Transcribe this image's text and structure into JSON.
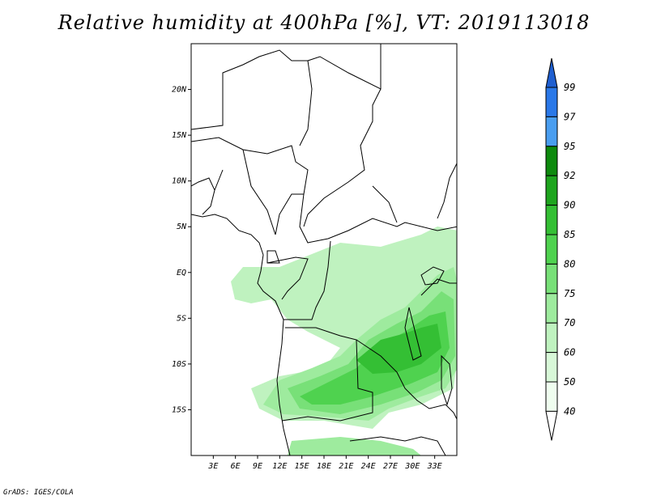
{
  "title": "Relative humidity at 400hPa [%], VT: 2019113018",
  "footer": "GrADS: IGES/COLA",
  "map": {
    "lon_range": [
      0,
      36
    ],
    "lat_range": [
      -20,
      25
    ],
    "lat_ticks": [
      "20N",
      "15N",
      "10N",
      "5N",
      "EQ",
      "5S",
      "10S",
      "15S"
    ],
    "lon_ticks": [
      "3E",
      "6E",
      "9E",
      "12E",
      "15E",
      "18E",
      "21E",
      "24E",
      "27E",
      "30E",
      "33E"
    ]
  },
  "colorbar": {
    "labels": [
      "99",
      "97",
      "95",
      "92",
      "90",
      "85",
      "80",
      "75",
      "70",
      "60",
      "50",
      "40"
    ],
    "colors": {
      "99": "#1f5fd0",
      "97": "#2a78e8",
      "95": "#4a9ef0",
      "92": "#0e8a0e",
      "90": "#1ea51e",
      "85": "#34bf34",
      "80": "#4fd24f",
      "75": "#78e078",
      "70": "#9eeb9e",
      "60": "#bff2bf",
      "50": "#d8f8d8",
      "40": "#effdef"
    }
  }
}
